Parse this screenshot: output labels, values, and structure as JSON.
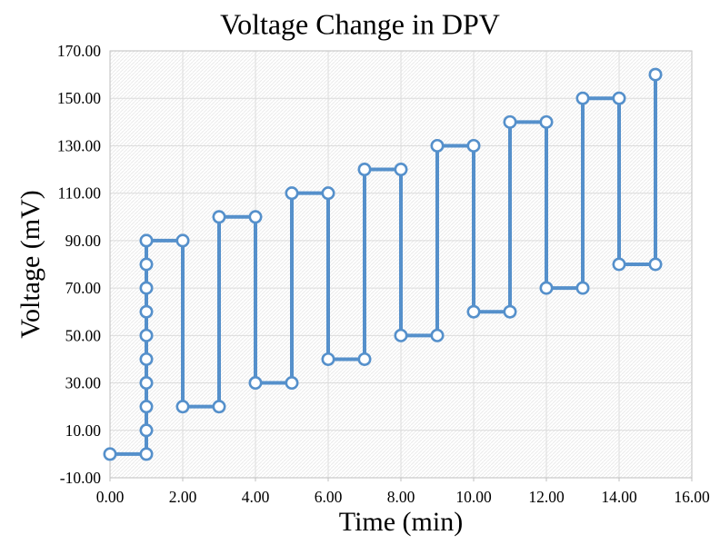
{
  "chart_data": {
    "type": "line",
    "title": "Voltage Change in DPV",
    "xlabel": "Time (min)",
    "ylabel": "Voltage (mV)",
    "xlim": [
      0,
      16
    ],
    "ylim": [
      -10,
      170
    ],
    "x_ticks": [
      0,
      2,
      4,
      6,
      8,
      10,
      12,
      14,
      16
    ],
    "x_tick_labels": [
      "0.00",
      "2.00",
      "4.00",
      "6.00",
      "8.00",
      "10.00",
      "12.00",
      "14.00",
      "16.00"
    ],
    "y_ticks": [
      -10,
      10,
      30,
      50,
      70,
      90,
      110,
      130,
      150,
      170
    ],
    "y_tick_labels": [
      "-10.00",
      "10.00",
      "30.00",
      "50.00",
      "70.00",
      "90.00",
      "110.00",
      "130.00",
      "150.00",
      "170.00"
    ],
    "grid": true,
    "legend": "none",
    "marker": "open-circle",
    "points": [
      [
        0,
        0
      ],
      [
        1,
        0
      ],
      [
        1,
        10
      ],
      [
        1,
        20
      ],
      [
        1,
        30
      ],
      [
        1,
        40
      ],
      [
        1,
        50
      ],
      [
        1,
        60
      ],
      [
        1,
        70
      ],
      [
        1,
        80
      ],
      [
        1,
        90
      ],
      [
        2,
        90
      ],
      [
        2,
        20
      ],
      [
        3,
        20
      ],
      [
        3,
        100
      ],
      [
        4,
        100
      ],
      [
        4,
        30
      ],
      [
        5,
        30
      ],
      [
        5,
        110
      ],
      [
        6,
        110
      ],
      [
        6,
        40
      ],
      [
        7,
        40
      ],
      [
        7,
        120
      ],
      [
        8,
        120
      ],
      [
        8,
        50
      ],
      [
        9,
        50
      ],
      [
        9,
        130
      ],
      [
        10,
        130
      ],
      [
        10,
        60
      ],
      [
        11,
        60
      ],
      [
        11,
        140
      ],
      [
        12,
        140
      ],
      [
        12,
        70
      ],
      [
        13,
        70
      ],
      [
        13,
        150
      ],
      [
        14,
        150
      ],
      [
        14,
        80
      ],
      [
        15,
        80
      ],
      [
        15,
        160
      ]
    ]
  },
  "colors": {
    "line": "#5590CB",
    "marker_fill": "#FFFFFF",
    "grid": "#DCDCDC",
    "plot_border": "#BFBFBF",
    "hatch": "#EBEBEB",
    "text": "#000000"
  }
}
